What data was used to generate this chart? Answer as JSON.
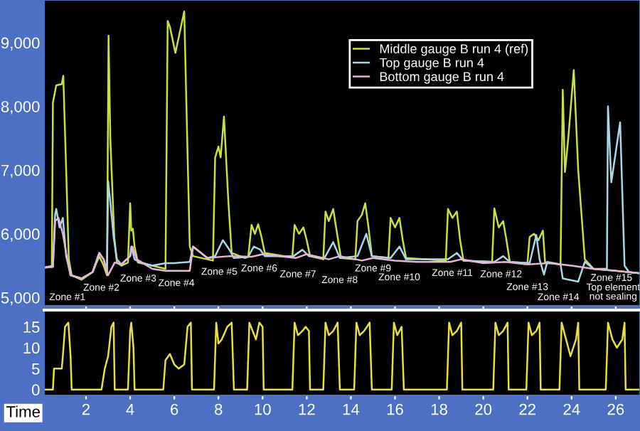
{
  "chart_data": [
    {
      "type": "line",
      "xlim": [
        0.1,
        27.1
      ],
      "ylim": [
        4870,
        9670
      ],
      "yticks": [
        {
          "value": 5000,
          "label": "5,000"
        },
        {
          "value": 6000,
          "label": "6,000"
        },
        {
          "value": 7000,
          "label": "7,000"
        },
        {
          "value": 8000,
          "label": "8,000"
        },
        {
          "value": 9000,
          "label": "9,000"
        }
      ],
      "xticks": [
        2,
        4,
        6,
        8,
        10,
        12,
        14,
        16,
        18,
        20,
        22,
        24,
        26
      ],
      "tick_labels": "y",
      "grid": false,
      "legend": "top right",
      "series": [
        {
          "name": "Middle gauge B run 4 (ref)",
          "color": "#c8e040",
          "x": [
            0.1,
            0.45,
            0.5,
            0.65,
            0.9,
            0.97,
            1.1,
            1.22,
            1.35,
            1.8,
            2.3,
            2.6,
            2.8,
            2.95,
            3.02,
            3.1,
            3.28,
            3.4,
            3.6,
            3.9,
            4.0,
            4.05,
            4.12,
            4.2,
            4.35,
            5.0,
            5.6,
            5.7,
            5.8,
            6.05,
            6.45,
            6.55,
            6.7,
            6.85,
            7.5,
            7.75,
            7.85,
            8.0,
            8.1,
            8.25,
            8.45,
            8.6,
            9.2,
            9.35,
            9.5,
            9.65,
            9.8,
            9.95,
            10.1,
            11.0,
            11.35,
            11.45,
            11.65,
            11.85,
            12.0,
            12.15,
            12.75,
            12.85,
            13.0,
            13.2,
            13.4,
            13.55,
            14.2,
            14.3,
            14.5,
            14.65,
            14.8,
            14.95,
            15.7,
            15.8,
            16.0,
            16.2,
            16.35,
            16.5,
            18.3,
            18.4,
            18.6,
            18.8,
            18.95,
            19.1,
            20.4,
            20.5,
            20.7,
            20.9,
            21.05,
            21.2,
            22.0,
            22.1,
            22.3,
            22.5,
            22.7,
            22.8,
            23.5,
            23.6,
            23.7,
            23.85,
            24.1,
            24.3,
            24.6,
            25.0,
            26.0,
            27.1
          ],
          "values": [
            5470,
            5480,
            8060,
            8330,
            8350,
            8480,
            7000,
            5600,
            5350,
            5280,
            5400,
            5650,
            5500,
            5350,
            9110,
            7500,
            5950,
            5550,
            5500,
            5550,
            6480,
            6050,
            6080,
            5800,
            5550,
            5500,
            5450,
            9340,
            9250,
            8840,
            9490,
            8000,
            5800,
            5650,
            5600,
            5580,
            7200,
            7370,
            7200,
            7840,
            6500,
            5700,
            5620,
            5640,
            6140,
            6000,
            6150,
            5950,
            5700,
            5650,
            5650,
            6140,
            6000,
            6100,
            5900,
            5650,
            5600,
            6350,
            6200,
            6390,
            5950,
            5620,
            5600,
            6200,
            6300,
            6480,
            6100,
            5650,
            5620,
            6250,
            6100,
            6250,
            5900,
            5620,
            5580,
            6390,
            6250,
            6350,
            5900,
            5580,
            5560,
            6400,
            6100,
            6200,
            5900,
            5560,
            5540,
            5950,
            6000,
            5900,
            6050,
            5550,
            5520,
            8260,
            6970,
            7500,
            8570,
            7000,
            5600,
            5450,
            5420,
            5380
          ]
        },
        {
          "name": "Top gauge B run 4",
          "color": "#a8d8e8",
          "x": [
            0.1,
            0.5,
            0.6,
            0.65,
            0.8,
            0.95,
            1.1,
            1.3,
            1.8,
            2.3,
            2.6,
            2.8,
            2.95,
            3.0,
            3.1,
            3.25,
            3.4,
            3.6,
            4.0,
            4.05,
            4.2,
            4.4,
            5.0,
            5.6,
            6.0,
            6.7,
            6.85,
            7.5,
            7.85,
            8.2,
            8.5,
            8.7,
            9.35,
            9.6,
            9.9,
            10.1,
            11.4,
            11.8,
            12.1,
            12.8,
            13.2,
            13.5,
            14.3,
            14.7,
            14.95,
            15.8,
            16.2,
            16.5,
            18.4,
            18.8,
            19.1,
            20.5,
            20.9,
            21.2,
            22.1,
            22.4,
            22.55,
            22.75,
            22.9,
            23.5,
            23.6,
            24.3,
            24.6,
            25.0,
            25.6,
            25.65,
            25.8,
            26.2,
            26.4,
            26.6,
            27.1
          ],
          "values": [
            5470,
            5500,
            6300,
            6390,
            6100,
            6250,
            5650,
            5350,
            5300,
            5400,
            5700,
            5600,
            5400,
            6830,
            6500,
            5950,
            5600,
            5520,
            5650,
            5800,
            5600,
            5560,
            5500,
            5540,
            5540,
            5560,
            5800,
            5620,
            5650,
            5900,
            5750,
            5620,
            5640,
            5800,
            5750,
            5650,
            5650,
            5750,
            5650,
            5620,
            5870,
            5620,
            5650,
            6000,
            5650,
            5620,
            5800,
            5600,
            5600,
            5700,
            5580,
            5560,
            5650,
            5560,
            5540,
            5980,
            5600,
            5360,
            5560,
            5520,
            5300,
            5250,
            5560,
            5450,
            5450,
            8000,
            6810,
            7750,
            5500,
            5400,
            5380
          ]
        },
        {
          "name": "Bottom gauge B run 4",
          "color": "#e8b4d8",
          "x": [
            0.1,
            0.5,
            0.6,
            0.75,
            0.95,
            1.1,
            1.3,
            1.8,
            2.3,
            2.6,
            2.8,
            3.0,
            3.3,
            3.6,
            4.0,
            4.1,
            4.3,
            5.0,
            5.6,
            6.7,
            6.85,
            7.5,
            8.5,
            9.5,
            10.0,
            11.5,
            12.0,
            13.0,
            13.5,
            14.5,
            15.0,
            16.0,
            17.0,
            18.5,
            19.0,
            20.0,
            21.0,
            22.0,
            23.0,
            24.0,
            25.0,
            26.0,
            27.1
          ],
          "values": [
            5470,
            5480,
            6200,
            6250,
            6000,
            5700,
            5350,
            5300,
            5400,
            5700,
            5600,
            5350,
            5550,
            5520,
            5650,
            5800,
            5600,
            5450,
            5420,
            5420,
            5800,
            5620,
            5650,
            5640,
            5680,
            5620,
            5680,
            5600,
            5650,
            5580,
            5620,
            5580,
            5560,
            5560,
            5600,
            5540,
            5560,
            5520,
            5540,
            5500,
            5450,
            5420,
            5380
          ]
        }
      ],
      "annotations": [
        "Zone #1",
        "Zone #2",
        "Zone #3",
        "Zone #4",
        "Zone #5",
        "Zone #6",
        "Zone #7",
        "Zone #8",
        "Zone #9",
        "Zone #10",
        "Zone #11",
        "Zone #12",
        "Zone #13",
        "Zone #14",
        "Zone #15",
        "Top element\nnot sealing"
      ]
    },
    {
      "type": "line",
      "xlim": [
        0.1,
        27.1
      ],
      "ylim": [
        -1.4,
        19
      ],
      "yticks": [
        0,
        5,
        10,
        15
      ],
      "xticks": [
        2,
        4,
        6,
        8,
        10,
        12,
        14,
        16,
        18,
        20,
        22,
        24,
        26
      ],
      "xlabel": "Time",
      "grid": false,
      "series": [
        {
          "color": "#e8e040",
          "x": [
            0.1,
            0.5,
            0.55,
            0.9,
            0.95,
            1.05,
            1.2,
            1.3,
            1.35,
            2.7,
            2.85,
            3.0,
            3.15,
            3.25,
            3.3,
            3.9,
            4.0,
            4.05,
            4.15,
            4.2,
            5.5,
            5.6,
            5.8,
            6.0,
            6.2,
            6.45,
            6.6,
            6.75,
            6.8,
            7.8,
            7.9,
            8.0,
            8.15,
            8.4,
            8.6,
            8.7,
            9.3,
            9.4,
            9.55,
            9.7,
            9.85,
            10.0,
            10.05,
            11.35,
            11.45,
            11.6,
            11.8,
            11.95,
            12.1,
            12.15,
            12.75,
            12.85,
            13.0,
            13.2,
            13.4,
            13.5,
            14.15,
            14.25,
            14.4,
            14.6,
            14.85,
            14.95,
            15.85,
            15.95,
            16.1,
            16.3,
            16.4,
            18.35,
            18.45,
            18.6,
            18.8,
            19.0,
            19.05,
            20.45,
            20.55,
            20.7,
            20.9,
            21.1,
            21.15,
            21.95,
            22.05,
            22.2,
            22.4,
            22.55,
            22.6,
            23.45,
            23.55,
            23.75,
            23.95,
            24.2,
            24.3,
            24.35,
            25.55,
            25.65,
            25.85,
            26.05,
            26.3,
            26.4,
            26.45,
            27.1
          ],
          "values": [
            0,
            0,
            5,
            5,
            8,
            15,
            16,
            8,
            0,
            0,
            5,
            8,
            15,
            16,
            0,
            0,
            14,
            16,
            10,
            0,
            0,
            7,
            8.5,
            6,
            5,
            6,
            15,
            16,
            0,
            0,
            16,
            11,
            12,
            15,
            16,
            0,
            0,
            16,
            14,
            12,
            16,
            15,
            0,
            0,
            16,
            13,
            14,
            15,
            14,
            0,
            0,
            16,
            13,
            14,
            16,
            0,
            0,
            16,
            13,
            14,
            16,
            0,
            0,
            16,
            13,
            15,
            0,
            0,
            16,
            13,
            14,
            16,
            0,
            0,
            16,
            13,
            14,
            16,
            0,
            0,
            16,
            13,
            14,
            16,
            0,
            0,
            16,
            12,
            8,
            12,
            16,
            0,
            0,
            16,
            12,
            10,
            12,
            16,
            0,
            0
          ]
        }
      ]
    }
  ]
}
